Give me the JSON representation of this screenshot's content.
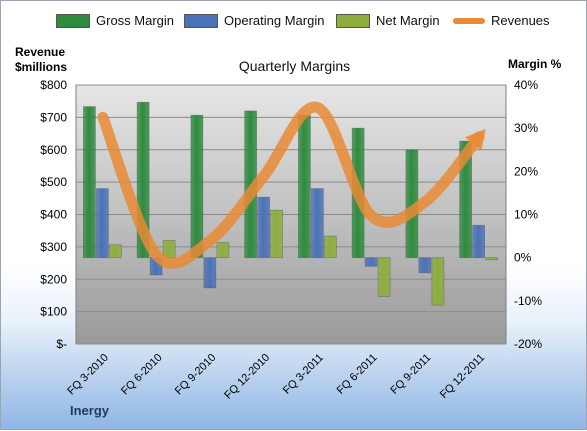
{
  "chart_data": {
    "type": "bar",
    "title": "Quarterly Margins",
    "categories": [
      "FQ 3-2010",
      "FQ 6-2010",
      "FQ 9-2010",
      "FQ 12-2010",
      "FQ 3-2011",
      "FQ 6-2011",
      "FQ 9-2011",
      "FQ 12-2011"
    ],
    "series": [
      {
        "name": "Gross Margin",
        "axis": "right",
        "values": [
          35,
          36,
          33,
          34,
          33,
          30,
          25,
          27
        ],
        "color": "#2e8b3e"
      },
      {
        "name": "Operating Margin",
        "axis": "right",
        "values": [
          16,
          -4,
          -7,
          14,
          16,
          -2,
          -3.5,
          7.5
        ],
        "color": "#4a72b8"
      },
      {
        "name": "Net Margin",
        "axis": "right",
        "values": [
          3,
          4,
          3.5,
          11,
          5,
          -9,
          -11,
          -0.5
        ],
        "color": "#8dae3e"
      },
      {
        "name": "Revenues",
        "axis": "left",
        "type": "line",
        "values": [
          700,
          275,
          320,
          520,
          730,
          395,
          440,
          640
        ],
        "color": "#e98a35"
      }
    ],
    "left_axis": {
      "title_line1": "Revenue",
      "title_line2": "$millions",
      "ylim": [
        0,
        800
      ],
      "ticks": [
        "$-",
        "$100",
        "$200",
        "$300",
        "$400",
        "$500",
        "$600",
        "$700",
        "$800"
      ]
    },
    "right_axis": {
      "title": "Margin %",
      "ylim": [
        -20,
        40
      ],
      "ticks": [
        "-20%",
        "-10%",
        "0%",
        "10%",
        "20%",
        "30%",
        "40%"
      ]
    },
    "legend_position": "top",
    "grid": true
  },
  "footer_label": "Inergy"
}
